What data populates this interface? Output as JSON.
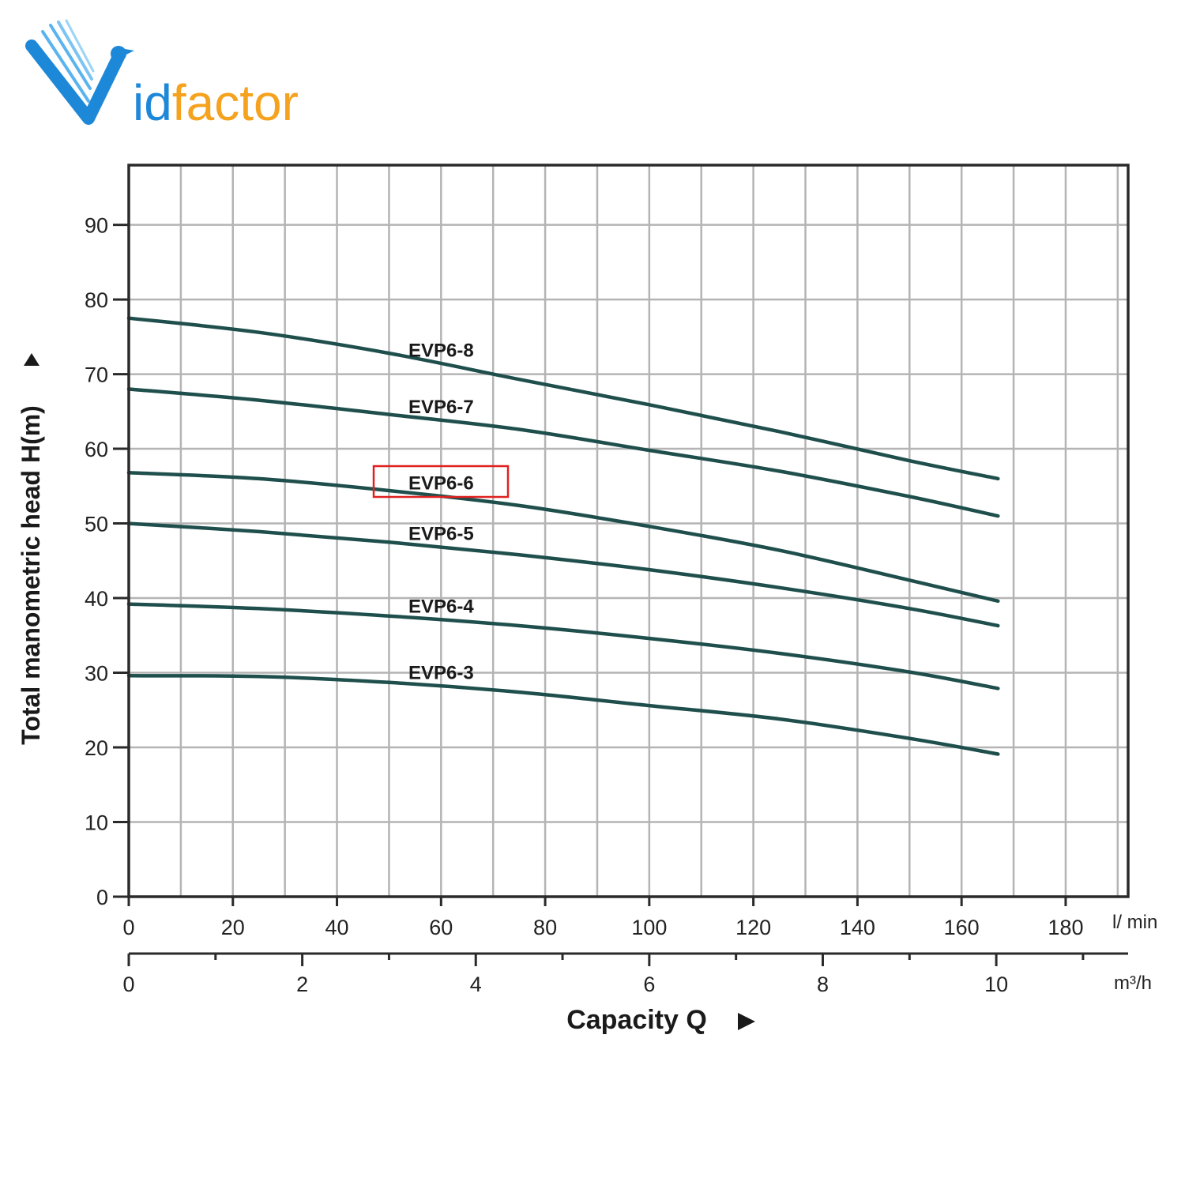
{
  "logo": {
    "text": "Vidfactor",
    "prefix": "id",
    "suffix": "factor",
    "color_blue": "#1e88d8",
    "color_orange": "#f5a21e"
  },
  "colors": {
    "curve": "#1f4f4c",
    "grid": "#b4b4b4",
    "frame": "#2a2a2a",
    "highlight": "#e02020"
  },
  "chart_data": {
    "type": "line",
    "ylabel": "Total manometric head H(m)",
    "xlabel": "Capacity Q",
    "x_unit": "l/ min",
    "x2_unit": "m³/h",
    "xlim": [
      0,
      192
    ],
    "ylim": [
      0,
      98
    ],
    "x_ticks": [
      0,
      20,
      40,
      60,
      80,
      100,
      120,
      140,
      160,
      180
    ],
    "x2_ticks": [
      0,
      2,
      4,
      6,
      8,
      10
    ],
    "y_ticks": [
      0,
      10,
      20,
      30,
      40,
      50,
      60,
      70,
      80,
      90
    ],
    "grid": true,
    "highlighted_series": "EVP6-6",
    "series": [
      {
        "name": "EVP6-8",
        "x": [
          0,
          25,
          50,
          75,
          100,
          125,
          150,
          167
        ],
        "y": [
          77.5,
          75.6,
          72.8,
          69.3,
          65.9,
          62.3,
          58.4,
          56
        ]
      },
      {
        "name": "EVP6-7",
        "x": [
          0,
          25,
          50,
          75,
          100,
          125,
          150,
          167
        ],
        "y": [
          68,
          66.5,
          64.6,
          62.6,
          59.8,
          57,
          53.6,
          51
        ]
      },
      {
        "name": "EVP6-6",
        "x": [
          0,
          25,
          50,
          75,
          100,
          125,
          150,
          167
        ],
        "y": [
          56.8,
          56,
          54.4,
          52.4,
          49.6,
          46.4,
          42.4,
          39.6
        ]
      },
      {
        "name": "EVP6-5",
        "x": [
          0,
          25,
          50,
          75,
          100,
          125,
          150,
          167
        ],
        "y": [
          50,
          48.9,
          47.5,
          45.8,
          43.8,
          41.4,
          38.6,
          36.3
        ]
      },
      {
        "name": "EVP6-4",
        "x": [
          0,
          25,
          50,
          75,
          100,
          125,
          150,
          167
        ],
        "y": [
          39.2,
          38.6,
          37.6,
          36.3,
          34.6,
          32.6,
          30.1,
          27.9
        ]
      },
      {
        "name": "EVP6-3",
        "x": [
          0,
          25,
          50,
          75,
          100,
          125,
          150,
          167
        ],
        "y": [
          29.6,
          29.5,
          28.7,
          27.4,
          25.6,
          23.8,
          21.2,
          19.1
        ]
      }
    ]
  }
}
